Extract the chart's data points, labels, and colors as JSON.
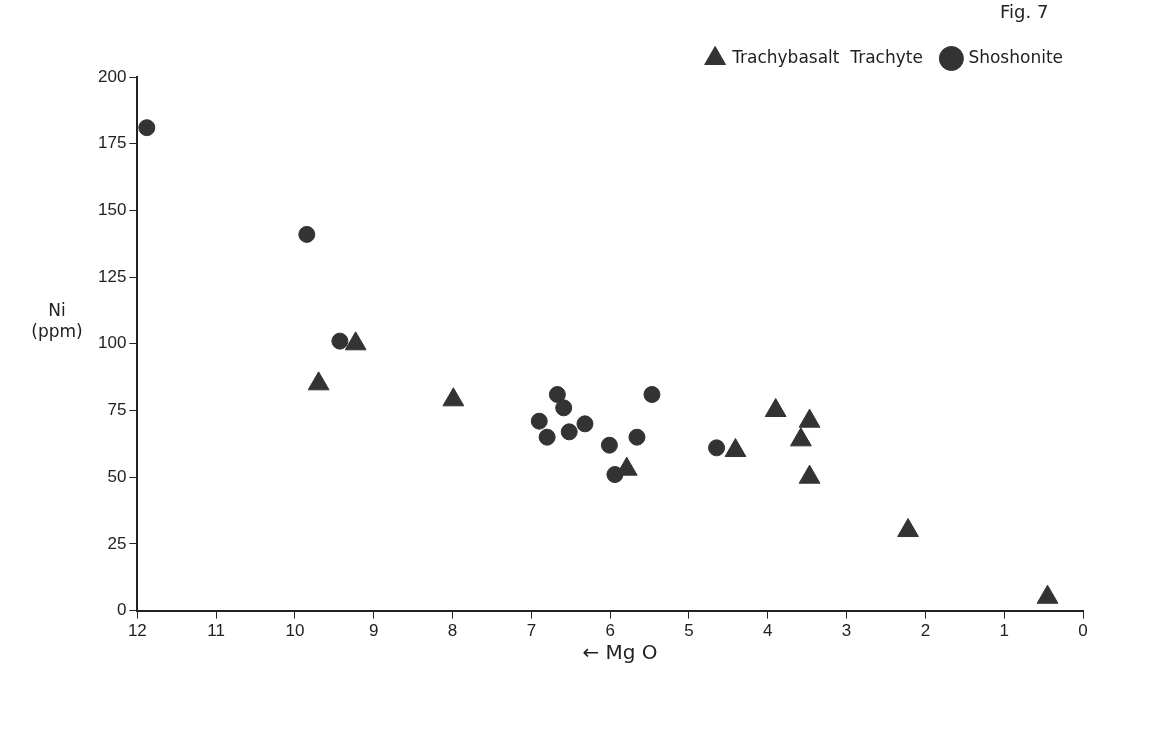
{
  "chart_data": {
    "type": "scatter",
    "xlabel": "← Mg O",
    "ylabel": "Ni (ppm)",
    "annotations": [
      "Fig. 7"
    ],
    "xlim": [
      12,
      0
    ],
    "xticks": [
      12,
      11,
      10,
      9,
      8,
      7,
      6,
      5,
      4,
      3,
      2,
      1,
      0
    ],
    "ylim": [
      0,
      200
    ],
    "yticks": [
      0,
      25,
      50,
      75,
      100,
      125,
      150,
      175,
      200
    ],
    "grid": false,
    "legend": "top right",
    "series": [
      {
        "name": "Trachybasalt  Trachyte",
        "color": "#333333",
        "marker": "triangle",
        "x": [
          9.23,
          9.7,
          7.99,
          5.79,
          4.41,
          3.9,
          3.47,
          3.58,
          3.47,
          2.22,
          0.45
        ],
        "values": [
          100,
          85,
          79,
          53,
          60,
          75,
          71,
          64,
          50,
          30,
          5
        ]
      },
      {
        "name": "Shoshonite",
        "color": "#333333",
        "marker": "circle",
        "x": [
          11.88,
          9.85,
          9.43,
          6.67,
          6.59,
          6.9,
          6.8,
          6.52,
          6.32,
          6.01,
          5.94,
          5.66,
          5.47,
          4.65
        ],
        "values": [
          181,
          141,
          101,
          81,
          76,
          71,
          65,
          67,
          70,
          62,
          51,
          65,
          81,
          61
        ]
      }
    ]
  }
}
